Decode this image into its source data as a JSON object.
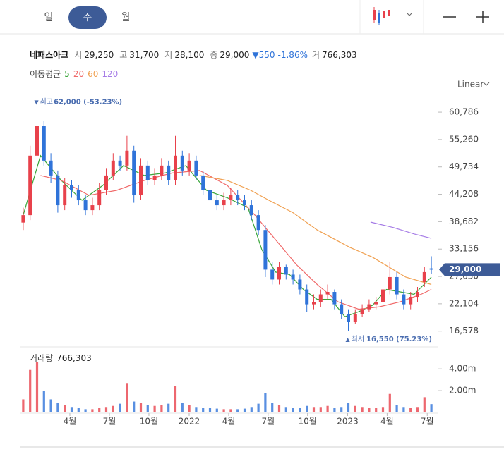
{
  "chart_data": {
    "type": "candlestick",
    "tabs": [
      "일",
      "주",
      "월"
    ],
    "selected_tab": 1,
    "stock_name": "네패스아크",
    "quote": [
      {
        "label": "시",
        "value": "29,250"
      },
      {
        "label": "고",
        "value": "31,700"
      },
      {
        "label": "저",
        "value": "28,100"
      },
      {
        "label": "종",
        "value": "29,000"
      }
    ],
    "change": "▼550",
    "change_pct": "-1.86%",
    "volume_quote": {
      "label": "거",
      "value": "766,303"
    },
    "scale_mode": "Linear",
    "up_color": "#e8414b",
    "down_color": "#2f73d9",
    "xlim": [
      0,
      60
    ],
    "xticks": [
      {
        "value": 7.24,
        "label": "4월"
      },
      {
        "value": 12.96,
        "label": "7월"
      },
      {
        "value": 18.67,
        "label": "10월"
      },
      {
        "value": 24.49,
        "label": "2022"
      },
      {
        "value": 30.2,
        "label": "4월"
      },
      {
        "value": 35.9,
        "label": "7월"
      },
      {
        "value": 41.6,
        "label": "10월"
      },
      {
        "value": 47.4,
        "label": "2023"
      },
      {
        "value": 53.1,
        "label": "4월"
      },
      {
        "value": 58.9,
        "label": "7월"
      }
    ],
    "ylim": [
      14400,
      63500
    ],
    "yticks": [
      {
        "value": 60786,
        "label": "60,786"
      },
      {
        "value": 55260,
        "label": "55,260"
      },
      {
        "value": 49734,
        "label": "49,734"
      },
      {
        "value": 44208,
        "label": "44,208"
      },
      {
        "value": 38682,
        "label": "38,682"
      },
      {
        "value": 33156,
        "label": "33,156"
      },
      {
        "value": 27630,
        "label": "27,630"
      },
      {
        "value": 22104,
        "label": "22,104"
      },
      {
        "value": 16578,
        "label": "16,578"
      }
    ],
    "last_price": {
      "value": 29000,
      "label": "29,000"
    },
    "ohlc": {
      "open": [
        38500,
        40000,
        52000,
        58000,
        51000,
        48000,
        42000,
        46000,
        45000,
        43000,
        41000,
        42000,
        45000,
        48000,
        51000,
        50000,
        53000,
        44000,
        50000,
        47000,
        48000,
        50000,
        47000,
        52000,
        49000,
        51000,
        48000,
        45000,
        43000,
        42000,
        43000,
        44000,
        43000,
        42000,
        40000,
        37000,
        29000,
        27000,
        29500,
        28000,
        27000,
        25000,
        22000,
        22500,
        24000,
        24500,
        22000,
        20000,
        18500,
        20000,
        21000,
        22000,
        22500,
        25000,
        27500,
        24000,
        22000,
        23500,
        26500,
        29250
      ],
      "high": [
        41500,
        54000,
        62000,
        59000,
        52500,
        49000,
        47500,
        47000,
        46000,
        44000,
        43500,
        46500,
        49500,
        52500,
        52000,
        56000,
        54000,
        51500,
        51000,
        49500,
        51500,
        51000,
        56000,
        53000,
        52500,
        52000,
        49000,
        46000,
        44000,
        44500,
        45500,
        45000,
        44000,
        43000,
        41000,
        38000,
        30500,
        30500,
        30000,
        29000,
        28000,
        26000,
        24000,
        25000,
        26000,
        25000,
        23000,
        21000,
        21000,
        22000,
        23000,
        23500,
        26000,
        30500,
        28500,
        25000,
        24500,
        25500,
        29500,
        31700
      ],
      "low": [
        37000,
        39000,
        51000,
        50000,
        46500,
        40500,
        41000,
        43500,
        42000,
        40000,
        40000,
        41000,
        44000,
        47000,
        49000,
        49000,
        42500,
        43000,
        46000,
        46000,
        47000,
        46000,
        46000,
        48000,
        48000,
        47000,
        44000,
        42000,
        41000,
        41000,
        42000,
        42000,
        41000,
        39000,
        36000,
        27500,
        26000,
        26000,
        27000,
        26000,
        24000,
        20500,
        21000,
        21500,
        23000,
        21000,
        19000,
        16550,
        18000,
        19500,
        20500,
        21000,
        22000,
        24000,
        23000,
        21000,
        21000,
        22500,
        25500,
        28100
      ],
      "close": [
        40000,
        52000,
        58000,
        51000,
        48000,
        42000,
        46000,
        45000,
        43000,
        41000,
        42000,
        45000,
        48000,
        51000,
        50000,
        53000,
        44000,
        50000,
        47000,
        48000,
        50000,
        47000,
        52000,
        49000,
        51000,
        48000,
        45000,
        43000,
        42000,
        43000,
        44000,
        43000,
        42000,
        40000,
        37000,
        29000,
        27000,
        29500,
        28000,
        27000,
        25000,
        22000,
        22500,
        24000,
        24500,
        22000,
        20000,
        18500,
        20000,
        21000,
        22000,
        22500,
        25000,
        27500,
        24000,
        22000,
        23500,
        24500,
        28500,
        29000
      ]
    },
    "annotations": {
      "high": {
        "label": "최고",
        "text": "62,000 (-53.23%)"
      },
      "low": {
        "label": "최저",
        "text": "16,550 (75.23%)"
      }
    },
    "moving_averages": {
      "label": "이동평균",
      "series": [
        {
          "name": "5",
          "color": "#3aa63a",
          "x": [
            0.5,
            3,
            6,
            9,
            12,
            15,
            18,
            21,
            24,
            27,
            30,
            33,
            35,
            37,
            39,
            41,
            43,
            45,
            47,
            49,
            51,
            53,
            55,
            57,
            59.5
          ],
          "values": [
            40000,
            52000,
            47000,
            43000,
            46000,
            50000,
            48000,
            48500,
            50000,
            45000,
            43500,
            41500,
            33000,
            28500,
            28000,
            25000,
            23000,
            23000,
            19500,
            20500,
            21800,
            25000,
            24500,
            24000,
            27500
          ]
        },
        {
          "name": "20",
          "color": "#f06a6a",
          "x": [
            3,
            6,
            10,
            14,
            18,
            22,
            26,
            30,
            34,
            37,
            40,
            43,
            46,
            49,
            52,
            55,
            58,
            59.5
          ],
          "values": [
            48000,
            47000,
            44000,
            45000,
            47000,
            48500,
            49000,
            46000,
            40000,
            35000,
            30000,
            26000,
            22500,
            21000,
            21500,
            22500,
            24000,
            25000
          ]
        },
        {
          "name": "60",
          "color": "#f0a050",
          "x": [
            26,
            30,
            33.4,
            36,
            39.5,
            43,
            47.7,
            51,
            55.8,
            59.5
          ],
          "values": [
            48000,
            47000,
            45000,
            43000,
            40500,
            37000,
            33500,
            31500,
            27500,
            26000
          ]
        },
        {
          "name": "120",
          "color": "#a57be6",
          "x": [
            50.7,
            54,
            57,
            59.5
          ],
          "values": [
            38600,
            37500,
            36200,
            35300
          ]
        }
      ]
    },
    "volume": {
      "label": "거래량",
      "last_label": "766,303",
      "ylim": [
        0,
        5500000
      ],
      "yticks": [
        {
          "value": 4000000,
          "label": "4.00m"
        },
        {
          "value": 2000000,
          "label": "2.00m"
        }
      ],
      "values": [
        1200000,
        3900000,
        4600000,
        2000000,
        1200000,
        900000,
        700000,
        500000,
        400000,
        300000,
        300000,
        400000,
        500000,
        600000,
        800000,
        2700000,
        1000000,
        900000,
        700000,
        600000,
        700000,
        800000,
        2400000,
        900000,
        700000,
        500000,
        400000,
        400000,
        350000,
        300000,
        300000,
        300000,
        350000,
        500000,
        800000,
        1800000,
        900000,
        700000,
        500000,
        400000,
        400000,
        600000,
        500000,
        500000,
        600000,
        450000,
        500000,
        900000,
        600000,
        500000,
        400000,
        400000,
        500000,
        1700000,
        700000,
        500000,
        400000,
        500000,
        1400000,
        766303
      ]
    }
  }
}
